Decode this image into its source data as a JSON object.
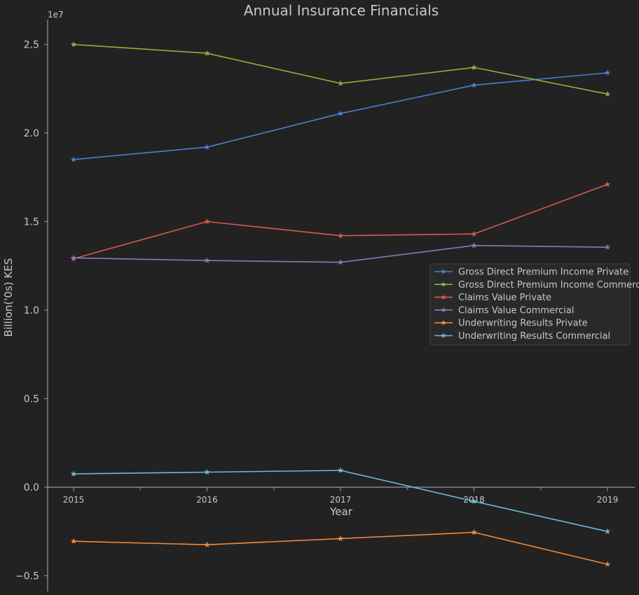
{
  "chart_data": {
    "type": "line",
    "title": "Annual Insurance Financials",
    "xlabel": "Year",
    "ylabel": "Billion('0s) KES",
    "y_offset_label": "1e7",
    "y_scale": 10000000,
    "x": [
      2015,
      2016,
      2017,
      2018,
      2019
    ],
    "x_tick_labels": [
      "2015",
      "2016",
      "2017",
      "2018",
      "2019"
    ],
    "y_ticks": [
      -0.5,
      0.0,
      0.5,
      1.0,
      1.5,
      2.0,
      2.5
    ],
    "y_tick_labels": [
      "−0.5",
      "0.0",
      "0.5",
      "1.0",
      "1.5",
      "2.0",
      "2.5"
    ],
    "xlim": [
      2014.8,
      2019.2
    ],
    "ylim": [
      -0.58,
      2.64
    ],
    "marker": "star",
    "legend_placement": "center-right",
    "series": [
      {
        "name": "Gross Direct Premium Income Private",
        "color": "#4a7fd4",
        "values": [
          1.85,
          1.92,
          2.11,
          2.27,
          2.34
        ]
      },
      {
        "name": "Gross Direct Premium Income Commercial",
        "color": "#8db33a",
        "values": [
          2.5,
          2.45,
          2.28,
          2.37,
          2.22
        ]
      },
      {
        "name": "Claims Value Private",
        "color": "#d45a55",
        "values": [
          1.29,
          1.5,
          1.42,
          1.43,
          1.71
        ]
      },
      {
        "name": "Claims Value Commercial",
        "color": "#8b78b8",
        "values": [
          1.295,
          1.28,
          1.27,
          1.365,
          1.355
        ]
      },
      {
        "name": "Underwriting Results Private",
        "color": "#f2893a",
        "values": [
          -0.305,
          -0.325,
          -0.29,
          -0.255,
          -0.435
        ]
      },
      {
        "name": "Underwriting Results Commercial",
        "color": "#6bbad8",
        "values": [
          0.075,
          0.085,
          0.095,
          -0.08,
          -0.25
        ]
      }
    ]
  }
}
